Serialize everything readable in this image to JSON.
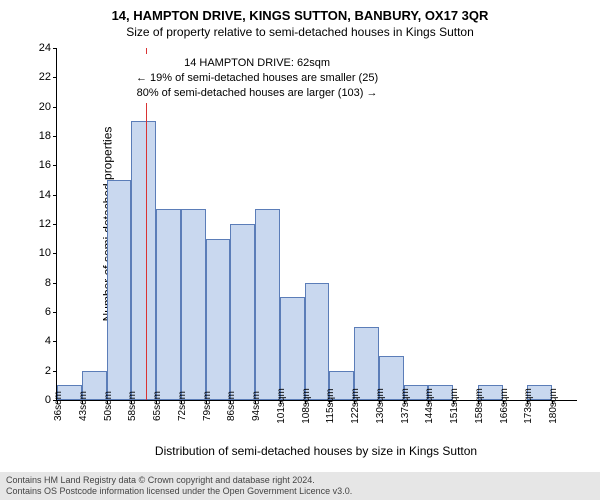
{
  "header": {
    "title": "14, HAMPTON DRIVE, KINGS SUTTON, BANBURY, OX17 3QR",
    "subtitle": "Size of property relative to semi-detached houses in Kings Sutton"
  },
  "chart": {
    "type": "histogram",
    "ylabel": "Number of semi-detached properties",
    "xlabel": "Distribution of semi-detached houses by size in Kings Sutton",
    "ylim": [
      0,
      24
    ],
    "yticks": [
      0,
      2,
      4,
      6,
      8,
      10,
      12,
      14,
      16,
      18,
      20,
      22,
      24
    ],
    "bar_fill": "#c9d8ef",
    "bar_border": "#5b7db8",
    "background": "#ffffff",
    "axis_color": "#000000",
    "x_start": 36,
    "x_step": 7,
    "xtick_labels": [
      "36sqm",
      "43sqm",
      "50sqm",
      "58sqm",
      "65sqm",
      "72sqm",
      "79sqm",
      "86sqm",
      "94sqm",
      "101sqm",
      "108sqm",
      "115sqm",
      "122sqm",
      "130sqm",
      "137sqm",
      "144sqm",
      "151sqm",
      "158sqm",
      "166sqm",
      "173sqm",
      "180sqm"
    ],
    "bar_values": [
      1,
      2,
      15,
      19,
      13,
      13,
      11,
      12,
      13,
      7,
      8,
      2,
      5,
      3,
      1,
      1,
      0,
      1,
      0,
      1,
      0
    ],
    "marker": {
      "color": "#d93333",
      "bin_position": 3.6,
      "annotation_title": "14 HAMPTON DRIVE: 62sqm",
      "annotation_line1": "← 19% of semi-detached houses are smaller (25)",
      "annotation_line2": "80% of semi-detached houses are larger (103) →"
    }
  },
  "footer": {
    "line1": "Contains HM Land Registry data © Crown copyright and database right 2024.",
    "line2": "Contains OS Postcode information licensed under the Open Government Licence v3.0."
  }
}
